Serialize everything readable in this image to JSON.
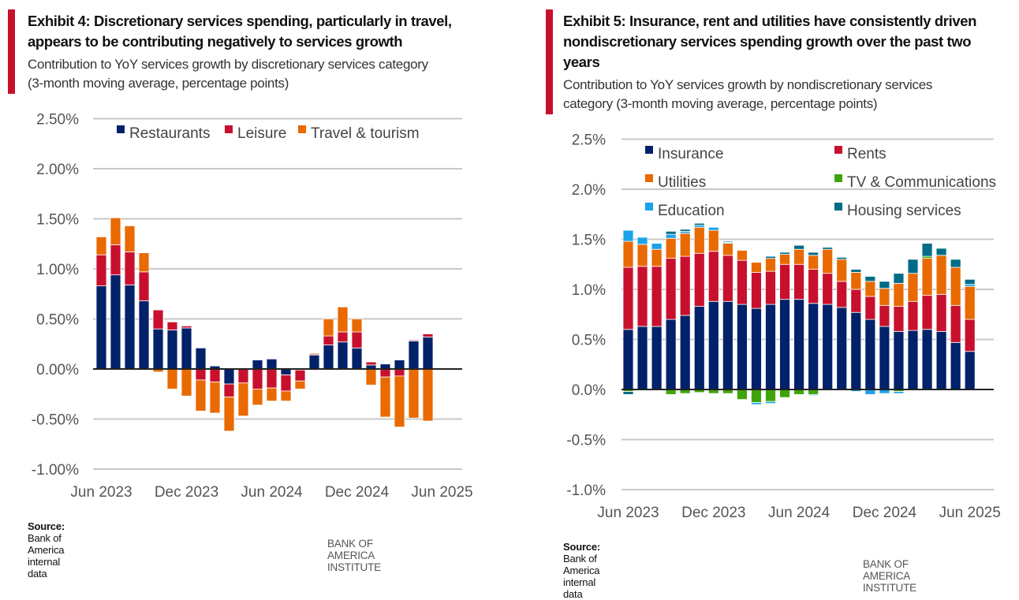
{
  "exhibits": [
    {
      "title": "Exhibit 4: Discretionary services spending, particularly in travel, appears to be contributing negatively to services growth",
      "title_lines": [
        "Exhibit 4: Discretionary services spending, particularly in travel,",
        "appears to be contributing negatively to services growth"
      ],
      "subtitle_lines": [
        "Contribution to YoY services growth by discretionary services category",
        "(3-month moving average, percentage points)"
      ],
      "source_label": "Source:",
      "source_text": " Bank of America internal data",
      "brand": "BANK OF AMERICA INSTITUTE"
    },
    {
      "title": "Exhibit 5: Insurance, rent and utilities have consistently driven nondiscretionary services spending growth over the past two years",
      "title_lines": [
        "Exhibit 5: Insurance, rent and utilities have consistently driven",
        "nondiscretionary services spending growth over the past two",
        "years"
      ],
      "subtitle_lines": [
        "Contribution to YoY services growth by nondiscretionary services",
        "category (3-month moving average, percentage points)"
      ],
      "source_label": "Source:",
      "source_text": " Bank of America internal data",
      "brand": "BANK OF AMERICA INSTITUTE"
    }
  ],
  "chart_data": [
    {
      "type": "bar",
      "stacked": true,
      "title": "Exhibit 4: Discretionary services spending, particularly in travel, appears to be contributing negatively to services growth",
      "xlabel": "",
      "ylabel": "",
      "ylim": [
        -1.0,
        2.5
      ],
      "yticks": [
        2.5,
        2.0,
        1.5,
        1.0,
        0.5,
        0.0,
        -0.5,
        -1.0
      ],
      "ytick_labels": [
        "2.50%",
        "2.00%",
        "1.50%",
        "1.00%",
        "0.50%",
        "0.00%",
        "-0.50%",
        "-1.00%"
      ],
      "xtick_labels": [
        "Jun 2023",
        "Dec 2023",
        "Jun 2024",
        "Dec 2024",
        "Jun 2025"
      ],
      "xtick_indices": [
        0,
        6,
        12,
        18,
        24
      ],
      "grid": true,
      "legend_position": "top",
      "categories": [
        "Jun 2023",
        "Jul 2023",
        "Aug 2023",
        "Sep 2023",
        "Oct 2023",
        "Nov 2023",
        "Dec 2023",
        "Jan 2024",
        "Feb 2024",
        "Mar 2024",
        "Apr 2024",
        "May 2024",
        "Jun 2024",
        "Jul 2024",
        "Aug 2024",
        "Sep 2024",
        "Oct 2024",
        "Nov 2024",
        "Dec 2024",
        "Jan 2025",
        "Feb 2025",
        "Mar 2025",
        "Apr 2025",
        "May 2025",
        "Jun 2025"
      ],
      "series": [
        {
          "name": "Restaurants",
          "color": "#012169",
          "values": [
            0.83,
            0.94,
            0.84,
            0.68,
            0.4,
            0.39,
            0.41,
            0.21,
            0.03,
            -0.15,
            0.01,
            0.09,
            0.1,
            -0.06,
            -0.01,
            0.14,
            0.24,
            0.27,
            0.21,
            0.04,
            0.05,
            0.09,
            0.28,
            0.32,
            0.0
          ]
        },
        {
          "name": "Leisure",
          "color": "#c8102e",
          "values": [
            0.31,
            0.3,
            0.33,
            0.29,
            0.19,
            0.08,
            0.02,
            -0.11,
            -0.13,
            -0.13,
            -0.14,
            -0.2,
            -0.19,
            -0.16,
            -0.11,
            0.01,
            0.09,
            0.1,
            0.16,
            0.03,
            -0.08,
            -0.07,
            0.01,
            0.03,
            0.0
          ]
        },
        {
          "name": "Travel & tourism",
          "color": "#e86a00",
          "values": [
            0.18,
            0.27,
            0.26,
            0.19,
            -0.03,
            -0.2,
            -0.27,
            -0.31,
            -0.31,
            -0.34,
            -0.33,
            -0.16,
            -0.13,
            -0.1,
            -0.08,
            0.01,
            0.17,
            0.25,
            0.13,
            -0.16,
            -0.4,
            -0.51,
            -0.49,
            -0.52,
            0.0
          ]
        }
      ]
    },
    {
      "type": "bar",
      "stacked": true,
      "title": "Exhibit 5: Insurance, rent and utilities have consistently driven nondiscretionary services spending growth over the past two years",
      "xlabel": "",
      "ylabel": "",
      "ylim": [
        -1.0,
        2.5
      ],
      "yticks": [
        2.5,
        2.0,
        1.5,
        1.0,
        0.5,
        0.0,
        -0.5,
        -1.0
      ],
      "ytick_labels": [
        "2.5%",
        "2.0%",
        "1.5%",
        "1.0%",
        "0.5%",
        "0.0%",
        "-0.5%",
        "-1.0%"
      ],
      "xtick_labels": [
        "Jun 2023",
        "Dec 2023",
        "Jun 2024",
        "Dec 2024",
        "Jun 2025"
      ],
      "xtick_indices": [
        0,
        6,
        12,
        18,
        24
      ],
      "grid": true,
      "legend_position": "top",
      "categories": [
        "Jun 2023",
        "Jul 2023",
        "Aug 2023",
        "Sep 2023",
        "Oct 2023",
        "Nov 2023",
        "Dec 2023",
        "Jan 2024",
        "Feb 2024",
        "Mar 2024",
        "Apr 2024",
        "May 2024",
        "Jun 2024",
        "Jul 2024",
        "Aug 2024",
        "Sep 2024",
        "Oct 2024",
        "Nov 2024",
        "Dec 2024",
        "Jan 2025",
        "Feb 2025",
        "Mar 2025",
        "Apr 2025",
        "May 2025",
        "Jun 2025"
      ],
      "series": [
        {
          "name": "Insurance",
          "color": "#012169",
          "values": [
            0.6,
            0.63,
            0.63,
            0.7,
            0.74,
            0.83,
            0.88,
            0.88,
            0.85,
            0.81,
            0.85,
            0.9,
            0.9,
            0.86,
            0.85,
            0.82,
            0.77,
            0.7,
            0.63,
            0.58,
            0.59,
            0.6,
            0.58,
            0.47,
            0.38
          ]
        },
        {
          "name": "Rents",
          "color": "#c8102e",
          "values": [
            0.62,
            0.6,
            0.6,
            0.61,
            0.59,
            0.53,
            0.5,
            0.46,
            0.44,
            0.36,
            0.33,
            0.35,
            0.35,
            0.34,
            0.31,
            0.26,
            0.23,
            0.23,
            0.21,
            0.25,
            0.29,
            0.34,
            0.37,
            0.37,
            0.32
          ]
        },
        {
          "name": "Utilities",
          "color": "#e86a00",
          "values": [
            0.26,
            0.22,
            0.17,
            0.2,
            0.23,
            0.26,
            0.21,
            0.12,
            0.1,
            0.1,
            0.13,
            0.1,
            0.15,
            0.14,
            0.24,
            0.22,
            0.17,
            0.15,
            0.17,
            0.23,
            0.28,
            0.37,
            0.39,
            0.38,
            0.33
          ]
        },
        {
          "name": "TV & Communications",
          "color": "#3ea40a",
          "values": [
            -0.02,
            -0.01,
            0.0,
            -0.05,
            -0.04,
            -0.03,
            -0.04,
            -0.04,
            -0.1,
            -0.13,
            -0.12,
            -0.08,
            -0.05,
            -0.05,
            0.0,
            0.0,
            0.0,
            0.0,
            0.0,
            -0.02,
            0.0,
            0.02,
            0.0,
            0.0,
            0.0
          ]
        },
        {
          "name": "Education",
          "color": "#1aa3e8",
          "values": [
            0.11,
            0.07,
            0.06,
            0.04,
            0.02,
            0.02,
            0.03,
            0.01,
            0.0,
            -0.02,
            -0.02,
            0.0,
            0.0,
            -0.01,
            0.0,
            0.0,
            -0.02,
            -0.05,
            -0.04,
            -0.02,
            0.0,
            0.0,
            0.0,
            0.0,
            0.02
          ]
        },
        {
          "name": "Housing services",
          "color": "#006c87",
          "values": [
            -0.03,
            0.0,
            0.0,
            0.03,
            0.02,
            0.02,
            0.0,
            0.01,
            0.0,
            0.0,
            0.02,
            0.02,
            0.04,
            0.03,
            0.02,
            0.02,
            0.03,
            0.05,
            0.07,
            0.1,
            0.14,
            0.13,
            0.07,
            0.08,
            0.05
          ]
        }
      ]
    }
  ]
}
